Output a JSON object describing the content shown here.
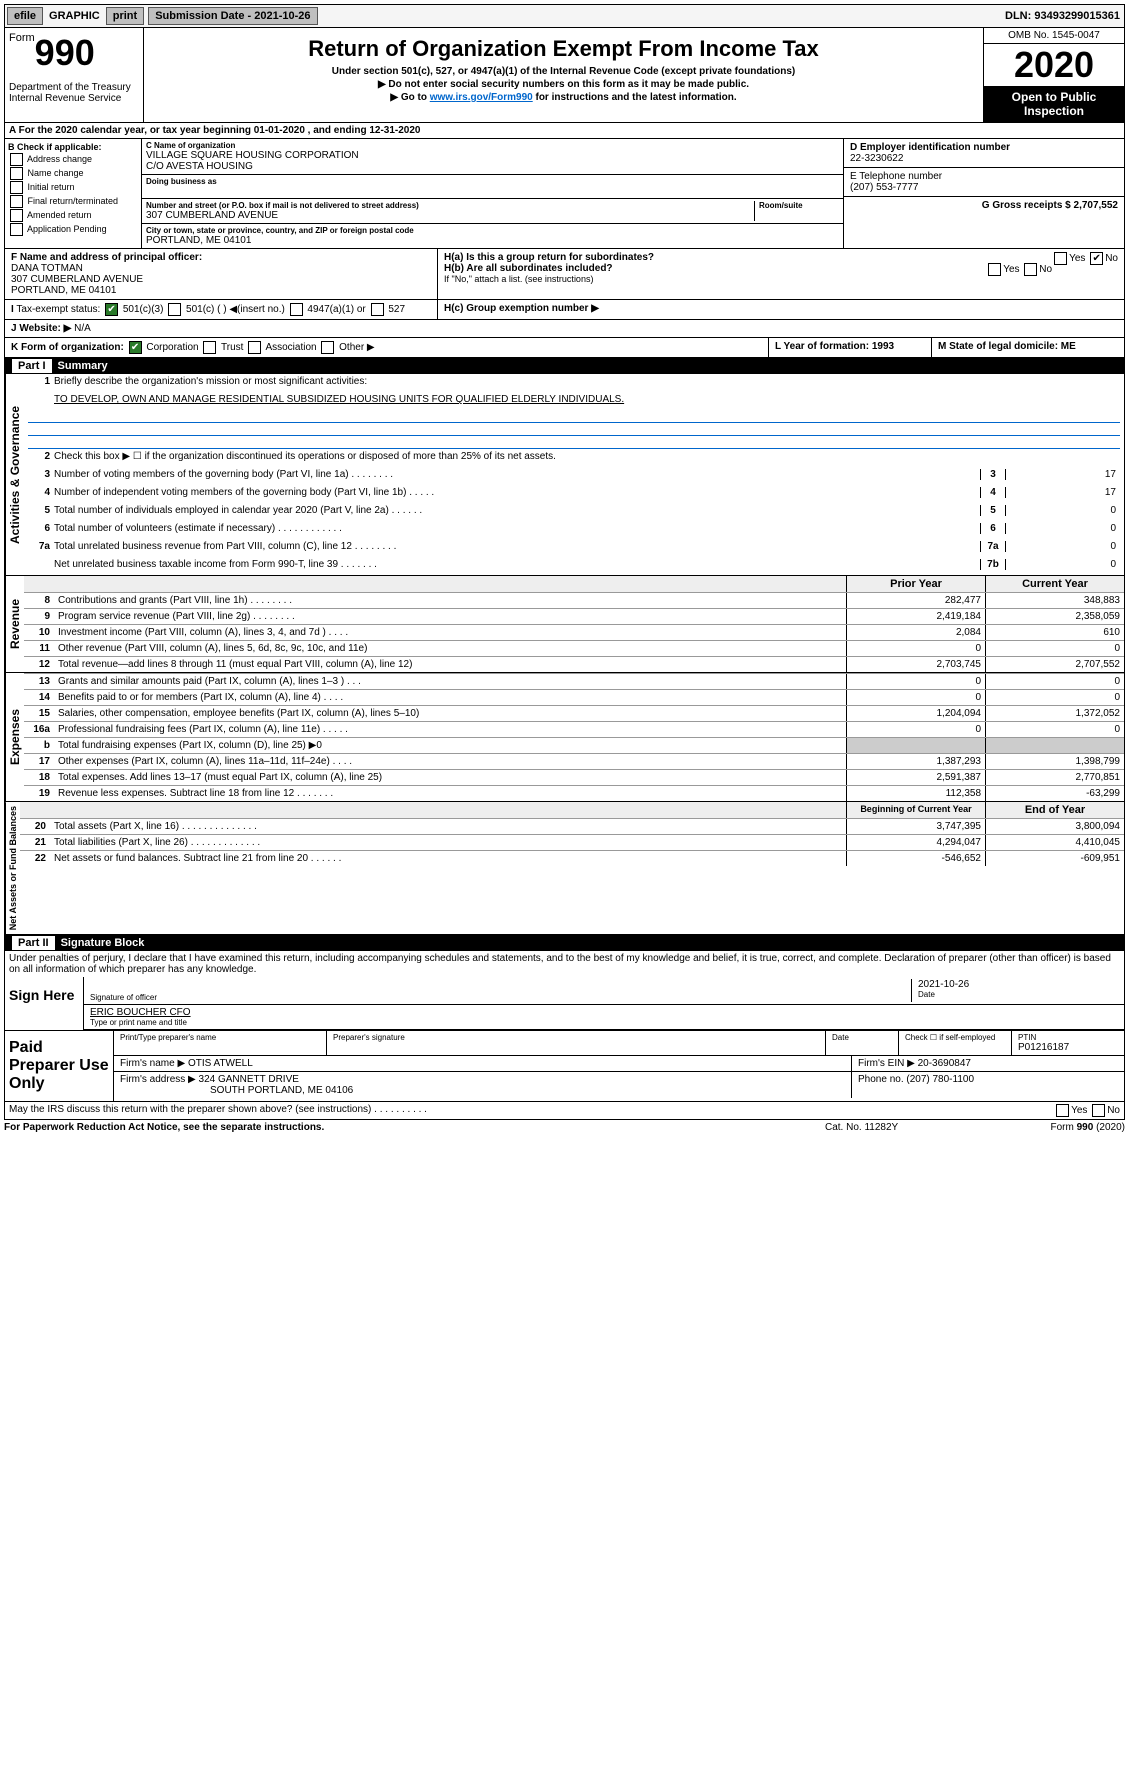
{
  "topbar": {
    "efile": "efile",
    "graphic": "GRAPHIC",
    "print": "print",
    "sub_label": "Submission Date - 2021-10-26",
    "dln_label": "DLN: 93493299015361"
  },
  "header": {
    "form": "Form",
    "form_num": "990",
    "dept": "Department of the Treasury\nInternal Revenue Service",
    "title": "Return of Organization Exempt From Income Tax",
    "sub1": "Under section 501(c), 527, or 4947(a)(1) of the Internal Revenue Code (except private foundations)",
    "sub2": "▶ Do not enter social security numbers on this form as it may be made public.",
    "sub3a": "▶ Go to ",
    "sub3_link": "www.irs.gov/Form990",
    "sub3b": " for instructions and the latest information.",
    "omb": "OMB No. 1545-0047",
    "year": "2020",
    "open": "Open to Public Inspection"
  },
  "period": "For the 2020 calendar year, or tax year beginning 01-01-2020   , and ending 12-31-2020",
  "boxB": {
    "header": "B Check if applicable:",
    "items": [
      "Address change",
      "Name change",
      "Initial return",
      "Final return/terminated",
      "Amended return",
      "Application Pending"
    ]
  },
  "boxC": {
    "name_label": "C Name of organization",
    "name": "VILLAGE SQUARE HOUSING CORPORATION",
    "co": "C/O AVESTA HOUSING",
    "dba_label": "Doing business as",
    "addr_label": "Number and street (or P.O. box if mail is not delivered to street address)",
    "room_label": "Room/suite",
    "addr": "307 CUMBERLAND AVENUE",
    "city_label": "City or town, state or province, country, and ZIP or foreign postal code",
    "city": "PORTLAND, ME  04101"
  },
  "boxD": {
    "ein_label": "D Employer identification number",
    "ein": "22-3230622",
    "phone_label": "E Telephone number",
    "phone": "(207) 553-7777",
    "gross_label": "G Gross receipts $ 2,707,552"
  },
  "boxF": {
    "label": "F  Name and address of principal officer:",
    "name": "DANA TOTMAN",
    "addr1": "307 CUMBERLAND AVENUE",
    "addr2": "PORTLAND, ME  04101"
  },
  "boxH": {
    "a": "H(a)  Is this a group return for subordinates?",
    "b": "H(b)  Are all subordinates included?",
    "b_note": "If \"No,\" attach a list. (see instructions)",
    "c": "H(c)  Group exemption number ▶",
    "yes": "Yes",
    "no": "No"
  },
  "taxStatus": {
    "label": "Tax-exempt status:",
    "c3": "501(c)(3)",
    "c": "501(c) (  ) ◀(insert no.)",
    "a1": "4947(a)(1) or",
    "s527": "527"
  },
  "boxJ": {
    "label": "Website: ▶",
    "val": "N/A"
  },
  "boxK": {
    "label": "K Form of organization:",
    "corp": "Corporation",
    "trust": "Trust",
    "assoc": "Association",
    "other": "Other ▶"
  },
  "boxL": {
    "label": "L Year of formation: 1993"
  },
  "boxM": {
    "label": "M State of legal domicile: ME"
  },
  "part1": {
    "hdr": "Part I",
    "title": "Summary",
    "rail1": "Activities & Governance",
    "rail2": "Revenue",
    "rail3": "Expenses",
    "rail4": "Net Assets or Fund Balances",
    "q1": "Briefly describe the organization's mission or most significant activities:",
    "mission": "TO DEVELOP, OWN AND MANAGE RESIDENTIAL SUBSIDIZED HOUSING UNITS FOR QUALIFIED ELDERLY INDIVIDUALS.",
    "q2": "Check this box ▶ ☐  if the organization discontinued its operations or disposed of more than 25% of its net assets.",
    "lines_gov": [
      {
        "n": "3",
        "t": "Number of voting members of the governing body (Part VI, line 1a)  .  .  .  .  .  .  .  .",
        "b": "3",
        "v": "17"
      },
      {
        "n": "4",
        "t": "Number of independent voting members of the governing body (Part VI, line 1b)  .  .  .  .  .",
        "b": "4",
        "v": "17"
      },
      {
        "n": "5",
        "t": "Total number of individuals employed in calendar year 2020 (Part V, line 2a)  .  .  .  .  .  .",
        "b": "5",
        "v": "0"
      },
      {
        "n": "6",
        "t": "Total number of volunteers (estimate if necessary)  .  .  .  .  .  .  .  .  .  .  .  .",
        "b": "6",
        "v": "0"
      },
      {
        "n": "7a",
        "t": "Total unrelated business revenue from Part VIII, column (C), line 12  .  .  .  .  .  .  .  .",
        "b": "7a",
        "v": "0"
      },
      {
        "n": "",
        "t": "Net unrelated business taxable income from Form 990-T, line 39  .  .  .  .  .  .  .",
        "b": "7b",
        "v": "0"
      }
    ],
    "hdr_prior": "Prior Year",
    "hdr_current": "Current Year",
    "rev": [
      {
        "n": "8",
        "t": "Contributions and grants (Part VIII, line 1h)  .  .  .  .  .  .  .  .",
        "p": "282,477",
        "c": "348,883"
      },
      {
        "n": "9",
        "t": "Program service revenue (Part VIII, line 2g)  .  .  .  .  .  .  .  .",
        "p": "2,419,184",
        "c": "2,358,059"
      },
      {
        "n": "10",
        "t": "Investment income (Part VIII, column (A), lines 3, 4, and 7d )  .  .  .  .",
        "p": "2,084",
        "c": "610"
      },
      {
        "n": "11",
        "t": "Other revenue (Part VIII, column (A), lines 5, 6d, 8c, 9c, 10c, and 11e)",
        "p": "0",
        "c": "0"
      },
      {
        "n": "12",
        "t": "Total revenue—add lines 8 through 11 (must equal Part VIII, column (A), line 12)",
        "p": "2,703,745",
        "c": "2,707,552"
      }
    ],
    "exp": [
      {
        "n": "13",
        "t": "Grants and similar amounts paid (Part IX, column (A), lines 1–3 )  .  .  .",
        "p": "0",
        "c": "0"
      },
      {
        "n": "14",
        "t": "Benefits paid to or for members (Part IX, column (A), line 4)  .  .  .  .",
        "p": "0",
        "c": "0"
      },
      {
        "n": "15",
        "t": "Salaries, other compensation, employee benefits (Part IX, column (A), lines 5–10)",
        "p": "1,204,094",
        "c": "1,372,052"
      },
      {
        "n": "16a",
        "t": "Professional fundraising fees (Part IX, column (A), line 11e)  .  .  .  .  .",
        "p": "0",
        "c": "0"
      },
      {
        "n": "b",
        "t": "Total fundraising expenses (Part IX, column (D), line 25) ▶0",
        "p": "",
        "c": "",
        "gray": true
      },
      {
        "n": "17",
        "t": "Other expenses (Part IX, column (A), lines 11a–11d, 11f–24e)  .  .  .  .",
        "p": "1,387,293",
        "c": "1,398,799"
      },
      {
        "n": "18",
        "t": "Total expenses. Add lines 13–17 (must equal Part IX, column (A), line 25)",
        "p": "2,591,387",
        "c": "2,770,851"
      },
      {
        "n": "19",
        "t": "Revenue less expenses. Subtract line 18 from line 12  .  .  .  .  .  .  .",
        "p": "112,358",
        "c": "-63,299"
      }
    ],
    "hdr_beg": "Beginning of Current Year",
    "hdr_end": "End of Year",
    "net": [
      {
        "n": "20",
        "t": "Total assets (Part X, line 16)  .  .  .  .  .  .  .  .  .  .  .  .  .  .",
        "p": "3,747,395",
        "c": "3,800,094"
      },
      {
        "n": "21",
        "t": "Total liabilities (Part X, line 26)  .  .  .  .  .  .  .  .  .  .  .  .  .",
        "p": "4,294,047",
        "c": "4,410,045"
      },
      {
        "n": "22",
        "t": "Net assets or fund balances. Subtract line 21 from line 20  .  .  .  .  .  .",
        "p": "-546,652",
        "c": "-609,951"
      }
    ]
  },
  "part2": {
    "hdr": "Part II",
    "title": "Signature Block",
    "perjury": "Under penalties of perjury, I declare that I have examined this return, including accompanying schedules and statements, and to the best of my knowledge and belief, it is true, correct, and complete. Declaration of preparer (other than officer) is based on all information of which preparer has any knowledge.",
    "sign_here": "Sign Here",
    "sig_label": "Signature of officer",
    "date_label": "Date",
    "date": "2021-10-26",
    "name": "ERIC BOUCHER CFO",
    "name_label": "Type or print name and title"
  },
  "paid": {
    "label": "Paid Preparer Use Only",
    "h1": "Print/Type preparer's name",
    "h2": "Preparer's signature",
    "h3": "Date",
    "h4_check": "Check ☐ if self-employed",
    "h5": "PTIN",
    "ptin": "P01216187",
    "firm_label": "Firm's name   ▶",
    "firm": "OTIS ATWELL",
    "ein_label": "Firm's EIN ▶ 20-3690847",
    "addr_label": "Firm's address ▶",
    "addr1": "324 GANNETT DRIVE",
    "addr2": "SOUTH PORTLAND, ME  04106",
    "phone_label": "Phone no. (207) 780-1100"
  },
  "discuss": {
    "txt": "May the IRS discuss this return with the preparer shown above? (see instructions)   .   .   .   .   .   .   .   .   .   .",
    "yes": "Yes",
    "no": "No"
  },
  "footer": {
    "left": "For Paperwork Reduction Act Notice, see the separate instructions.",
    "mid": "Cat. No. 11282Y",
    "right": "Form 990 (2020)"
  }
}
